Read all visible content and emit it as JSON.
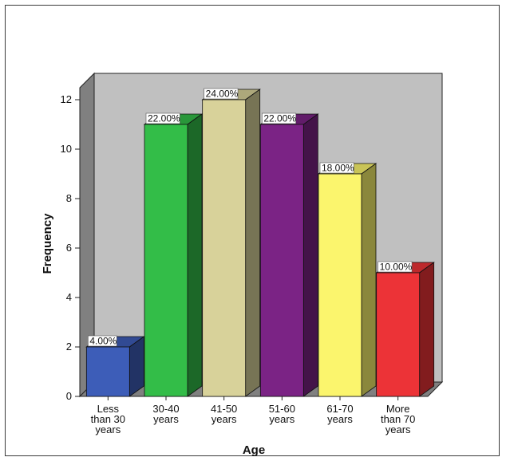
{
  "chart_data": {
    "type": "bar",
    "style": "3d",
    "categories": [
      [
        "Less",
        "than 30",
        "years"
      ],
      [
        "30-40",
        "years"
      ],
      [
        "41-50",
        "years"
      ],
      [
        "51-60",
        "years"
      ],
      [
        "61-70",
        "years"
      ],
      [
        "More",
        "than 70",
        "years"
      ]
    ],
    "values": [
      2,
      11,
      12,
      11,
      9,
      5
    ],
    "percent_labels": [
      "4.00%",
      "22.00%",
      "24.00%",
      "22.00%",
      "18.00%",
      "10.00%"
    ],
    "colors": [
      "#3d5db8",
      "#33bd48",
      "#d8d29a",
      "#7b2385",
      "#fbf56d",
      "#ec3337"
    ],
    "xlabel": "Age",
    "ylabel": "Frequency",
    "ylim": [
      0,
      12
    ],
    "yticks": [
      0,
      2,
      4,
      6,
      8,
      10,
      12
    ],
    "grid": false,
    "plot_background": "#c0c0c0"
  }
}
